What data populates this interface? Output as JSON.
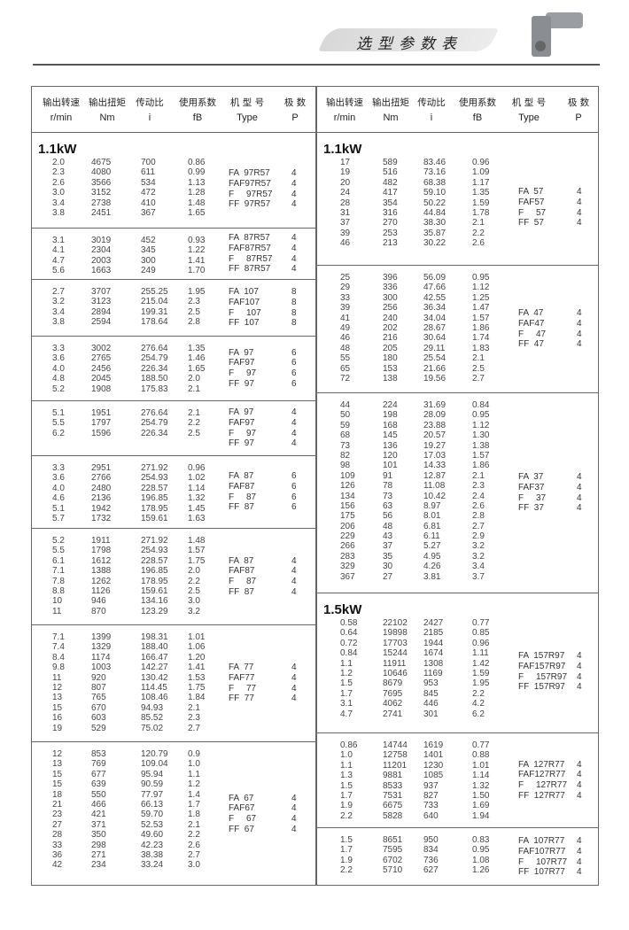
{
  "header": {
    "title": "选型参数表",
    "image": "gear-motor-photo"
  },
  "columns": {
    "zh": [
      "输出转速",
      "输出扭矩",
      "传动比",
      "使用系数",
      "机 型 号",
      "极  数"
    ],
    "en": [
      "r/min",
      "Nm",
      "i",
      "fB",
      "Type",
      "P"
    ]
  },
  "left": [
    {
      "heading": "1.1kW",
      "rows": [
        [
          "2.0",
          "4675",
          "700",
          "0.86"
        ],
        [
          "2.3",
          "4080",
          "611",
          "0.99"
        ],
        [
          "2.6",
          "3566",
          "534",
          "1.13"
        ],
        [
          "3.0",
          "3152",
          "472",
          "1.28"
        ],
        [
          "3.4",
          "2738",
          "410",
          "1.48"
        ],
        [
          "3.8",
          "2451",
          "367",
          "1.65"
        ]
      ],
      "types": [
        [
          "FA  97R57",
          "4"
        ],
        [
          "FAF97R57",
          "4"
        ],
        [
          "F     97R57",
          "4"
        ],
        [
          "FF  97R57",
          "4"
        ]
      ]
    },
    {
      "rows": [
        [
          "3.1",
          "3019",
          "452",
          "0.93"
        ],
        [
          "4.1",
          "2304",
          "345",
          "1.22"
        ],
        [
          "4.7",
          "2003",
          "300",
          "1.41"
        ],
        [
          "5.6",
          "1663",
          "249",
          "1.70"
        ]
      ],
      "types": [
        [
          "FA  87R57",
          "4"
        ],
        [
          "FAF87R57",
          "4"
        ],
        [
          "F     87R57",
          "4"
        ],
        [
          "FF  87R57",
          "4"
        ]
      ]
    },
    {
      "rows": [
        [
          "2.7",
          "3707",
          "255.25",
          "1.95"
        ],
        [
          "3.2",
          "3123",
          "215.04",
          "2.3"
        ],
        [
          "3.4",
          "2894",
          "199.31",
          "2.5"
        ],
        [
          "3.8",
          "2594",
          "178.64",
          "2.8"
        ]
      ],
      "types": [
        [
          "FA  107",
          "8"
        ],
        [
          "FAF107",
          "8"
        ],
        [
          "F     107",
          "8"
        ],
        [
          "FF  107",
          "8"
        ]
      ]
    },
    {
      "rows": [
        [
          "3.3",
          "3002",
          "276.64",
          "1.35"
        ],
        [
          "3.6",
          "2765",
          "254.79",
          "1.46"
        ],
        [
          "4.0",
          "2456",
          "226.34",
          "1.65"
        ],
        [
          "4.8",
          "2045",
          "188.50",
          "2.0"
        ],
        [
          "5.2",
          "1908",
          "175.83",
          "2.1"
        ]
      ],
      "types": [
        [
          "FA  97",
          "6"
        ],
        [
          "FAF97",
          "6"
        ],
        [
          "F     97",
          "6"
        ],
        [
          "FF  97",
          "6"
        ]
      ]
    },
    {
      "rows": [
        [
          "5.1",
          "1951",
          "276.64",
          "2.1"
        ],
        [
          "5.5",
          "1797",
          "254.79",
          "2.2"
        ],
        [
          "6.2",
          "1596",
          "226.34",
          "2.5"
        ]
      ],
      "types": [
        [
          "FA  97",
          "4"
        ],
        [
          "FAF97",
          "4"
        ],
        [
          "F     97",
          "4"
        ],
        [
          "FF  97",
          "4"
        ]
      ]
    },
    {
      "rows": [
        [
          "3.3",
          "2951",
          "271.92",
          "0.96"
        ],
        [
          "3.6",
          "2766",
          "254.93",
          "1.02"
        ],
        [
          "4.0",
          "2480",
          "228.57",
          "1.14"
        ],
        [
          "4.6",
          "2136",
          "196.85",
          "1.32"
        ],
        [
          "5.1",
          "1942",
          "178.95",
          "1.45"
        ],
        [
          "5.7",
          "1732",
          "159.61",
          "1.63"
        ]
      ],
      "types": [
        [
          "FA  87",
          "6"
        ],
        [
          "FAF87",
          "6"
        ],
        [
          "F     87",
          "6"
        ],
        [
          "FF  87",
          "6"
        ]
      ]
    },
    {
      "rows": [
        [
          "5.2",
          "1911",
          "271.92",
          "1.48"
        ],
        [
          "5.5",
          "1798",
          "254.93",
          "1.57"
        ],
        [
          "6.1",
          "1612",
          "228.57",
          "1.75"
        ],
        [
          "7.1",
          "1388",
          "196.85",
          "2.0"
        ],
        [
          "7.8",
          "1262",
          "178.95",
          "2.2"
        ],
        [
          "8.8",
          "1126",
          "159.61",
          "2.5"
        ],
        [
          "10",
          "946",
          "134.16",
          "3.0"
        ],
        [
          "11",
          "870",
          "123.29",
          "3.2"
        ]
      ],
      "types": [
        [
          "FA  87",
          "4"
        ],
        [
          "FAF87",
          "4"
        ],
        [
          "F     87",
          "4"
        ],
        [
          "FF  87",
          "4"
        ]
      ]
    },
    {
      "rows": [
        [
          "7.1",
          "1399",
          "198.31",
          "1.01"
        ],
        [
          "7.4",
          "1329",
          "188.40",
          "1.06"
        ],
        [
          "8.4",
          "1174",
          "166.47",
          "1.20"
        ],
        [
          "9.8",
          "1003",
          "142.27",
          "1.41"
        ],
        [
          "11",
          "920",
          "130.42",
          "1.53"
        ],
        [
          "12",
          "807",
          "114.45",
          "1.75"
        ],
        [
          "13",
          "765",
          "108.46",
          "1.84"
        ],
        [
          "15",
          "670",
          "94.93",
          "2.1"
        ],
        [
          "16",
          "603",
          "85.52",
          "2.3"
        ],
        [
          "19",
          "529",
          "75.02",
          "2.7"
        ]
      ],
      "types": [
        [
          "FA  77",
          "4"
        ],
        [
          "FAF77",
          "4"
        ],
        [
          "F     77",
          "4"
        ],
        [
          "FF  77",
          "4"
        ]
      ]
    },
    {
      "rows": [
        [
          "12",
          "853",
          "120.79",
          "0.9"
        ],
        [
          "13",
          "769",
          "109.04",
          "1.0"
        ],
        [
          "15",
          "677",
          "95.94",
          "1.1"
        ],
        [
          "15",
          "639",
          "90.59",
          "1.2"
        ],
        [
          "18",
          "550",
          "77.97",
          "1.4"
        ],
        [
          "21",
          "466",
          "66.13",
          "1.7"
        ],
        [
          "23",
          "421",
          "59.70",
          "1.8"
        ],
        [
          "27",
          "371",
          "52.53",
          "2.1"
        ],
        [
          "28",
          "350",
          "49.60",
          "2.2"
        ],
        [
          "33",
          "298",
          "42.23",
          "2.6"
        ],
        [
          "36",
          "271",
          "38.38",
          "2.7"
        ],
        [
          "42",
          "234",
          "33.24",
          "3.0"
        ]
      ],
      "types": [
        [
          "FA  67",
          "4"
        ],
        [
          "FAF67",
          "4"
        ],
        [
          "F     67",
          "4"
        ],
        [
          "FF  67",
          "4"
        ]
      ]
    }
  ],
  "right": [
    {
      "heading": "1.1kW",
      "rows": [
        [
          "17",
          "589",
          "83.46",
          "0.96"
        ],
        [
          "19",
          "516",
          "73.16",
          "1.09"
        ],
        [
          "20",
          "482",
          "68.38",
          "1.17"
        ],
        [
          "24",
          "417",
          "59.10",
          "1.35"
        ],
        [
          "28",
          "354",
          "50.22",
          "1.59"
        ],
        [
          "31",
          "316",
          "44.84",
          "1.78"
        ],
        [
          "37",
          "270",
          "38.30",
          "2.1"
        ],
        [
          "39",
          "253",
          "35.87",
          "2.2"
        ],
        [
          "46",
          "213",
          "30.22",
          "2.6"
        ]
      ],
      "types": [
        [
          "FA  57",
          "4"
        ],
        [
          "FAF57",
          "4"
        ],
        [
          "F     57",
          "4"
        ],
        [
          "FF  57",
          "4"
        ]
      ]
    },
    {
      "rows": [
        [
          "25",
          "396",
          "56.09",
          "0.95"
        ],
        [
          "29",
          "336",
          "47.66",
          "1.12"
        ],
        [
          "33",
          "300",
          "42.55",
          "1.25"
        ],
        [
          "39",
          "256",
          "36.34",
          "1.47"
        ],
        [
          "41",
          "240",
          "34.04",
          "1.57"
        ],
        [
          "49",
          "202",
          "28.67",
          "1.86"
        ],
        [
          "46",
          "216",
          "30.64",
          "1.74"
        ],
        [
          "48",
          "205",
          "29.11",
          "1.83"
        ],
        [
          "55",
          "180",
          "25.54",
          "2.1"
        ],
        [
          "65",
          "153",
          "21.66",
          "2.5"
        ],
        [
          "72",
          "138",
          "19.56",
          "2.7"
        ]
      ],
      "types": [
        [
          "FA  47",
          "4"
        ],
        [
          "FAF47",
          "4"
        ],
        [
          "F     47",
          "4"
        ],
        [
          "FF  47",
          "4"
        ]
      ]
    },
    {
      "rows": [
        [
          "44",
          "224",
          "31.69",
          "0.84"
        ],
        [
          "50",
          "198",
          "28.09",
          "0.95"
        ],
        [
          "59",
          "168",
          "23.88",
          "1.12"
        ],
        [
          "68",
          "145",
          "20.57",
          "1.30"
        ],
        [
          "73",
          "136",
          "19.27",
          "1.38"
        ],
        [
          "82",
          "120",
          "17.03",
          "1.57"
        ],
        [
          "98",
          "101",
          "14.33",
          "1.86"
        ],
        [
          "109",
          "91",
          "12.87",
          "2.1"
        ],
        [
          "126",
          "78",
          "11.08",
          "2.3"
        ],
        [
          "134",
          "73",
          "10.42",
          "2.4"
        ],
        [
          "156",
          "63",
          "8.97",
          "2.6"
        ],
        [
          "175",
          "56",
          "8.01",
          "2.8"
        ],
        [
          "206",
          "48",
          "6.81",
          "2.7"
        ],
        [
          "229",
          "43",
          "6.11",
          "2.9"
        ],
        [
          "266",
          "37",
          "5.27",
          "3.2"
        ],
        [
          "283",
          "35",
          "4.95",
          "3.2"
        ],
        [
          "329",
          "30",
          "4.26",
          "3.4"
        ],
        [
          "367",
          "27",
          "3.81",
          "3.7"
        ]
      ],
      "types": [
        [
          "FA  37",
          "4"
        ],
        [
          "FAF37",
          "4"
        ],
        [
          "F     37",
          "4"
        ],
        [
          "FF  37",
          "4"
        ]
      ]
    },
    {
      "heading": "1.5kW",
      "rows": [
        [
          "0.58",
          "22102",
          "2427",
          "0.77"
        ],
        [
          "0.64",
          "19898",
          "2185",
          "0.85"
        ],
        [
          "0.72",
          "17703",
          "1944",
          "0.96"
        ],
        [
          "0.84",
          "15244",
          "1674",
          "1.11"
        ],
        [
          "1.1",
          "11911",
          "1308",
          "1.42"
        ],
        [
          "1.2",
          "10646",
          "1169",
          "1.59"
        ],
        [
          "1.5",
          "8679",
          "953",
          "1.95"
        ],
        [
          "1.7",
          "7695",
          "845",
          "2.2"
        ],
        [
          "3.1",
          "4062",
          "446",
          "4.2"
        ],
        [
          "4.7",
          "2741",
          "301",
          "6.2"
        ]
      ],
      "types": [
        [
          "FA  157R97",
          "4"
        ],
        [
          "FAF157R97",
          "4"
        ],
        [
          "F     157R97",
          "4"
        ],
        [
          "FF  157R97",
          "4"
        ]
      ]
    },
    {
      "rows": [
        [
          "0.86",
          "14744",
          "1619",
          "0.77"
        ],
        [
          "1.0",
          "12758",
          "1401",
          "0.88"
        ],
        [
          "1.1",
          "11201",
          "1230",
          "1.01"
        ],
        [
          "1.3",
          "9881",
          "1085",
          "1.14"
        ],
        [
          "1.5",
          "8533",
          "937",
          "1.32"
        ],
        [
          "1.7",
          "7531",
          "827",
          "1.50"
        ],
        [
          "1.9",
          "6675",
          "733",
          "1.69"
        ],
        [
          "2.2",
          "5828",
          "640",
          "1.94"
        ]
      ],
      "types": [
        [
          "FA  127R77",
          "4"
        ],
        [
          "FAF127R77",
          "4"
        ],
        [
          "F     127R77",
          "4"
        ],
        [
          "FF  127R77",
          "4"
        ]
      ]
    },
    {
      "rows": [
        [
          "1.5",
          "8651",
          "950",
          "0.83"
        ],
        [
          "1.7",
          "7595",
          "834",
          "0.95"
        ],
        [
          "1.9",
          "6702",
          "736",
          "1.08"
        ],
        [
          "2.2",
          "5710",
          "627",
          "1.26"
        ]
      ],
      "types": [
        [
          "FA  107R77",
          "4"
        ],
        [
          "FAF107R77",
          "4"
        ],
        [
          "F     107R77",
          "4"
        ],
        [
          "FF  107R77",
          "4"
        ]
      ]
    }
  ]
}
